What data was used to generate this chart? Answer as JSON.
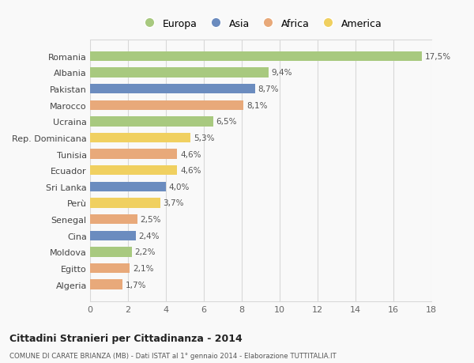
{
  "countries": [
    "Romania",
    "Albania",
    "Pakistan",
    "Marocco",
    "Ucraina",
    "Rep. Dominicana",
    "Tunisia",
    "Ecuador",
    "Sri Lanka",
    "Perù",
    "Senegal",
    "Cina",
    "Moldova",
    "Egitto",
    "Algeria"
  ],
  "values": [
    17.5,
    9.4,
    8.7,
    8.1,
    6.5,
    5.3,
    4.6,
    4.6,
    4.0,
    3.7,
    2.5,
    2.4,
    2.2,
    2.1,
    1.7
  ],
  "labels": [
    "17,5%",
    "9,4%",
    "8,7%",
    "8,1%",
    "6,5%",
    "5,3%",
    "4,6%",
    "4,6%",
    "4,0%",
    "3,7%",
    "2,5%",
    "2,4%",
    "2,2%",
    "2,1%",
    "1,7%"
  ],
  "continents": [
    "Europa",
    "Europa",
    "Asia",
    "Africa",
    "Europa",
    "America",
    "Africa",
    "America",
    "Asia",
    "America",
    "Africa",
    "Asia",
    "Europa",
    "Africa",
    "Africa"
  ],
  "colors": {
    "Europa": "#a8c97f",
    "Asia": "#6b8cbf",
    "Africa": "#e8a97a",
    "America": "#f0d060"
  },
  "legend_order": [
    "Europa",
    "Asia",
    "Africa",
    "America"
  ],
  "title": "Cittadini Stranieri per Cittadinanza - 2014",
  "subtitle": "COMUNE DI CARATE BRIANZA (MB) - Dati ISTAT al 1° gennaio 2014 - Elaborazione TUTTITALIA.IT",
  "xlim": [
    0,
    18
  ],
  "xticks": [
    0,
    2,
    4,
    6,
    8,
    10,
    12,
    14,
    16,
    18
  ],
  "background_color": "#f9f9f9",
  "grid_color": "#d8d8d8",
  "bar_height": 0.6
}
